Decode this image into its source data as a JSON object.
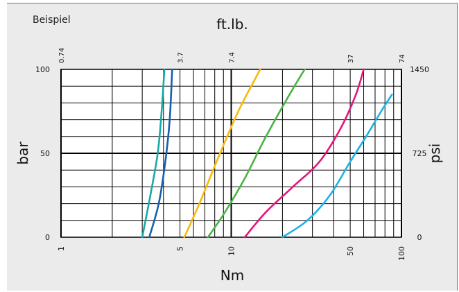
{
  "chart_data": {
    "type": "line",
    "note": "Beispiel",
    "x_axis": {
      "label": "Nm",
      "scale": "log",
      "range": [
        1,
        100
      ],
      "ticks": [
        "1",
        "5",
        "10",
        "50",
        "100"
      ]
    },
    "x2_axis": {
      "label": "ft.lb.",
      "ticks": [
        "0.74",
        "3.7",
        "7.4",
        "37",
        "74"
      ]
    },
    "y_axis": {
      "label": "bar",
      "range": [
        0,
        100
      ],
      "ticks": [
        "0",
        "50",
        "100"
      ]
    },
    "y2_axis": {
      "label": "psi",
      "ticks": [
        "0",
        "725",
        "1450"
      ]
    },
    "grid": true,
    "series": [
      {
        "color": "#17a9a8",
        "points": [
          [
            3.0,
            0
          ],
          [
            3.35,
            25
          ],
          [
            3.7,
            50
          ],
          [
            3.9,
            75
          ],
          [
            4.05,
            100
          ]
        ]
      },
      {
        "color": "#1460b0",
        "points": [
          [
            3.3,
            0
          ],
          [
            3.75,
            20
          ],
          [
            4.1,
            45
          ],
          [
            4.35,
            70
          ],
          [
            4.5,
            100
          ]
        ]
      },
      {
        "color": "#f8b90b",
        "points": [
          [
            5.3,
            0
          ],
          [
            6.5,
            20
          ],
          [
            8.2,
            45
          ],
          [
            11.0,
            75
          ],
          [
            14.8,
            100
          ]
        ]
      },
      {
        "color": "#4ab446",
        "points": [
          [
            7.3,
            0
          ],
          [
            9.2,
            15
          ],
          [
            12.0,
            35
          ],
          [
            16.0,
            60
          ],
          [
            22.0,
            85
          ],
          [
            27.0,
            100
          ]
        ]
      },
      {
        "color": "#e5157a",
        "points": [
          [
            12.0,
            0
          ],
          [
            16.0,
            15
          ],
          [
            23.0,
            30
          ],
          [
            33.0,
            45
          ],
          [
            44.0,
            65
          ],
          [
            54.0,
            85
          ],
          [
            60.0,
            100
          ]
        ]
      },
      {
        "color": "#1cb2e4",
        "points": [
          [
            20.0,
            0
          ],
          [
            28.0,
            10
          ],
          [
            38.0,
            25
          ],
          [
            50.0,
            45
          ],
          [
            62.0,
            60
          ],
          [
            76.0,
            75
          ],
          [
            88.0,
            85
          ]
        ]
      }
    ]
  }
}
